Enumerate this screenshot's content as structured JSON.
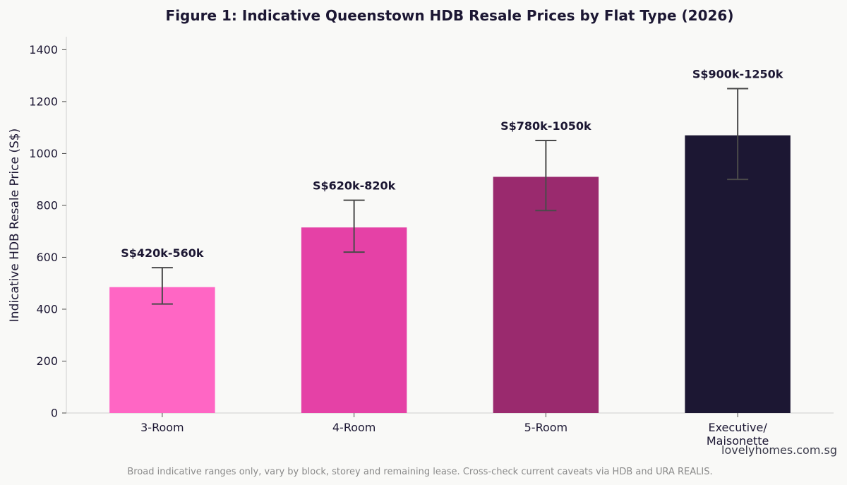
{
  "chart_data": {
    "type": "bar",
    "title": "Figure 1: Indicative Queenstown HDB Resale Prices by Flat Type (2026)",
    "xlabel": "",
    "ylabel": "Indicative HDB Resale Price (S$)",
    "ylim": [
      0,
      1450
    ],
    "yticks": [
      0,
      200,
      400,
      600,
      800,
      1000,
      1200,
      1400
    ],
    "categories": [
      [
        "3-Room"
      ],
      [
        "4-Room"
      ],
      [
        "5-Room"
      ],
      [
        "Executive/",
        "Maisonette"
      ]
    ],
    "values": [
      485,
      715,
      910,
      1070
    ],
    "ranges": [
      [
        420,
        560
      ],
      [
        620,
        820
      ],
      [
        780,
        1050
      ],
      [
        900,
        1250
      ]
    ],
    "range_labels": [
      "S$420k-560k",
      "S$620k-820k",
      "S$780k-1050k",
      "S$900k-1250k"
    ],
    "colors": [
      "#ff66c4",
      "#e541a6",
      "#9a2a6e",
      "#1c1733"
    ],
    "error_bar_color": "#4a4a4a",
    "grid": false,
    "legend": "none"
  },
  "watermark": "lovelyhomes.com.sg",
  "footnote": "Broad indicative ranges only, vary by block, storey and remaining lease. Cross-check current caveats via HDB and URA REALIS."
}
